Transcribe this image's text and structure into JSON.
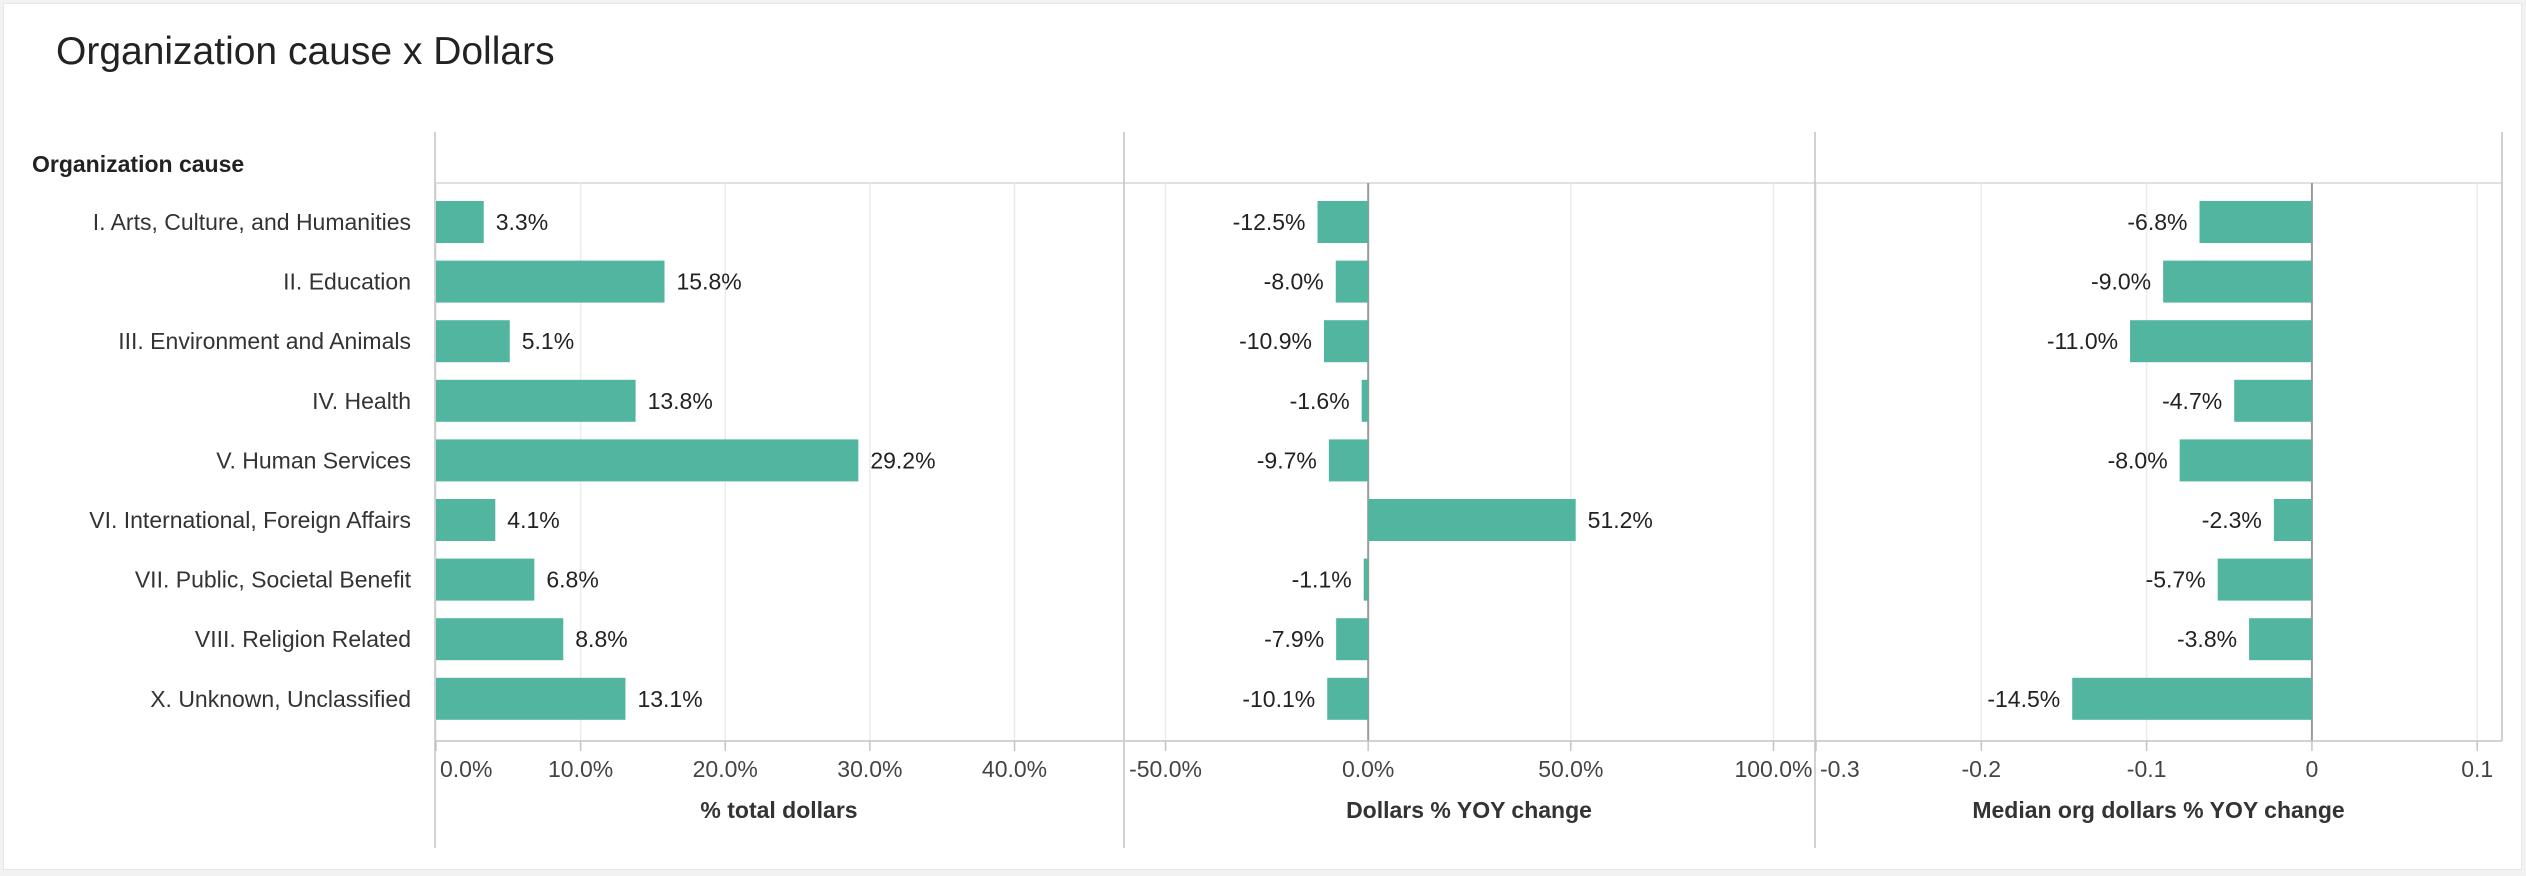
{
  "title": "Organization cause x Dollars",
  "colors": {
    "bar": "#52b5a0",
    "grid": "#ececec",
    "axis": "#c4c4c4",
    "text": "#222222",
    "tick_text": "#444444"
  },
  "chart_data": {
    "type": "bar",
    "orientation": "horizontal",
    "row_header": "Organization cause",
    "categories": [
      "I. Arts, Culture, and Humanities",
      "II. Education",
      "III. Environment and Animals",
      "IV. Health",
      "V. Human Services",
      "VI. International, Foreign Affairs",
      "VII. Public, Societal Benefit",
      "VIII. Religion Related",
      "X. Unknown, Unclassified"
    ],
    "panels": [
      {
        "name": "% total dollars",
        "xlabel": "% total dollars",
        "values": [
          3.3,
          15.8,
          5.1,
          13.8,
          29.2,
          4.1,
          6.8,
          8.8,
          13.1
        ],
        "labels": [
          "3.3%",
          "15.8%",
          "5.1%",
          "13.8%",
          "29.2%",
          "4.1%",
          "6.8%",
          "8.8%",
          "13.1%"
        ],
        "xlim": [
          0,
          47.5
        ],
        "ticks": [
          0,
          10,
          20,
          30,
          40
        ],
        "tick_labels": [
          "0.0%",
          "10.0%",
          "20.0%",
          "30.0%",
          "40.0%"
        ]
      },
      {
        "name": "Dollars % YOY change",
        "xlabel": "Dollars % YOY change",
        "values": [
          -12.5,
          -8.0,
          -10.9,
          -1.6,
          -9.7,
          51.2,
          -1.1,
          -7.9,
          -10.1
        ],
        "labels": [
          "-12.5%",
          "-8.0%",
          "-10.9%",
          "-1.6%",
          "-9.7%",
          "51.2%",
          "-1.1%",
          "-7.9%",
          "-10.1%"
        ],
        "xlim": [
          -60,
          110
        ],
        "ticks": [
          -50,
          0,
          50,
          100
        ],
        "tick_labels": [
          "-50.0%",
          "0.0%",
          "50.0%",
          "100.0%"
        ]
      },
      {
        "name": "Median org dollars % YOY change",
        "xlabel": "Median org dollars % YOY change",
        "values": [
          -0.068,
          -0.09,
          -0.11,
          -0.047,
          -0.08,
          -0.023,
          -0.057,
          -0.038,
          -0.145
        ],
        "labels": [
          "-6.8%",
          "-9.0%",
          "-11.0%",
          "-4.7%",
          "-8.0%",
          "-2.3%",
          "-5.7%",
          "-3.8%",
          "-14.5%"
        ],
        "xlim": [
          -0.3,
          0.115
        ],
        "ticks": [
          -0.3,
          -0.2,
          -0.1,
          0,
          0.1
        ],
        "tick_labels": [
          "-0.3",
          "-0.2",
          "-0.1",
          "0",
          "0.1"
        ]
      }
    ]
  }
}
